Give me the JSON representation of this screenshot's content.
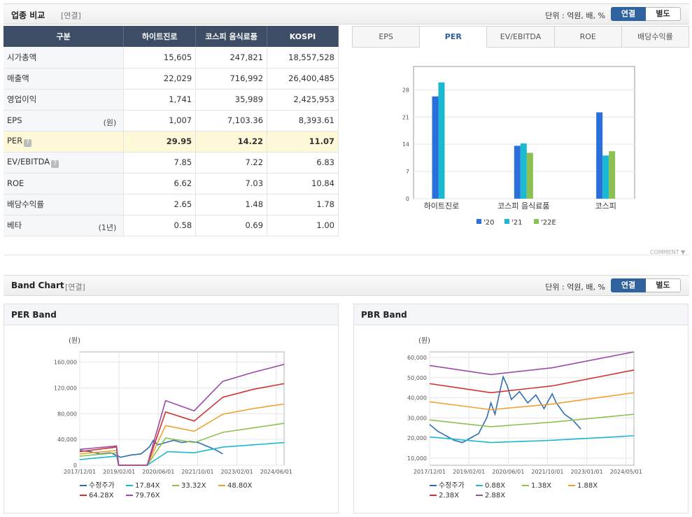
{
  "compare": {
    "title": "업종 비교",
    "sub": "[연결]",
    "unit": "단위 : 억원, 배, %",
    "toggle_on": "연결",
    "toggle_off": "별도",
    "headers": [
      "구분",
      "하이트진로",
      "코스피 음식료품",
      "KOSPI"
    ],
    "rows": [
      {
        "label": "시가총액",
        "suffix": "",
        "help": false,
        "values": [
          "15,605",
          "247,821",
          "18,557,528"
        ],
        "highlight": false
      },
      {
        "label": "매출액",
        "suffix": "",
        "help": false,
        "values": [
          "22,029",
          "716,992",
          "26,400,485"
        ],
        "highlight": false
      },
      {
        "label": "영업이익",
        "suffix": "",
        "help": false,
        "values": [
          "1,741",
          "35,989",
          "2,425,953"
        ],
        "highlight": false
      },
      {
        "label": "EPS",
        "suffix": "(원)",
        "help": false,
        "values": [
          "1,007",
          "7,103.36",
          "8,393.61"
        ],
        "highlight": false
      },
      {
        "label": "PER",
        "suffix": "",
        "help": true,
        "values": [
          "29.95",
          "14.22",
          "11.07"
        ],
        "highlight": true
      },
      {
        "label": "EV/EBITDA",
        "suffix": "",
        "help": true,
        "values": [
          "7.85",
          "7.22",
          "6.83"
        ],
        "highlight": false
      },
      {
        "label": "ROE",
        "suffix": "",
        "help": false,
        "values": [
          "6.62",
          "7.03",
          "10.84"
        ],
        "highlight": false
      },
      {
        "label": "배당수익률",
        "suffix": "",
        "help": false,
        "values": [
          "2.65",
          "1.48",
          "1.78"
        ],
        "highlight": false
      },
      {
        "label": "베타",
        "suffix": "(1년)",
        "help": false,
        "values": [
          "0.58",
          "0.69",
          "1.00"
        ],
        "highlight": false
      }
    ]
  },
  "tabs": [
    "EPS",
    "PER",
    "EV/EBITDA",
    "ROE",
    "배당수익률"
  ],
  "active_tab": 1,
  "comment_label": "COMMENT ▼",
  "band": {
    "title": "Band Chart",
    "sub": "[연결]",
    "unit": "단위 : 억원, 배, %",
    "toggle_on": "연결",
    "toggle_off": "별도"
  },
  "chart_data": [
    {
      "type": "bar",
      "title": "",
      "categories": [
        "하이트진로",
        "코스피 음식료품",
        "코스피"
      ],
      "series": [
        {
          "name": "'20",
          "color": "#2a6fdb",
          "values": [
            26.3,
            13.6,
            22.2
          ]
        },
        {
          "name": "'21",
          "color": "#1bb9d1",
          "values": [
            29.9,
            14.2,
            11.1
          ]
        },
        {
          "name": "'22E",
          "color": "#8cc152",
          "values": [
            null,
            11.8,
            12.2
          ]
        }
      ],
      "y_ticks": [
        0,
        7,
        14,
        21,
        28
      ],
      "ylim": [
        0,
        34
      ]
    },
    {
      "type": "line",
      "title": "PER Band",
      "ylabel": "(원)",
      "x_ticks": [
        "2017/12/01",
        "2019/02/01",
        "2020/06/01",
        "2021/10/01",
        "2023/02/01",
        "2024/06/01"
      ],
      "y_ticks": [
        "0",
        "40,000",
        "80,000",
        "120,000",
        "160,000"
      ],
      "ylim": [
        0,
        175000
      ],
      "legend": [
        "수정주가",
        "17.84X",
        "33.32X",
        "48.80X",
        "64.28X",
        "79.76X"
      ],
      "colors": [
        "#2a6fb5",
        "#1bb9d1",
        "#8cc152",
        "#f0a030",
        "#d03232",
        "#9b4aa8"
      ]
    },
    {
      "type": "line",
      "title": "PBR Band",
      "ylabel": "(원)",
      "x_ticks": [
        "2017/12/01",
        "2019/02/01",
        "2020/06/01",
        "2021/10/01",
        "2023/01/01",
        "2024/05/01"
      ],
      "y_ticks": [
        "10,000",
        "20,000",
        "30,000",
        "40,000",
        "50,000",
        "60,000"
      ],
      "ylim": [
        4000,
        62000
      ],
      "legend": [
        "수정주가",
        "0.88X",
        "1.38X",
        "1.88X",
        "2.38X",
        "2.88X"
      ],
      "colors": [
        "#2a6fb5",
        "#1bb9d1",
        "#8cc152",
        "#f0a030",
        "#d03232",
        "#9b4aa8"
      ]
    }
  ]
}
